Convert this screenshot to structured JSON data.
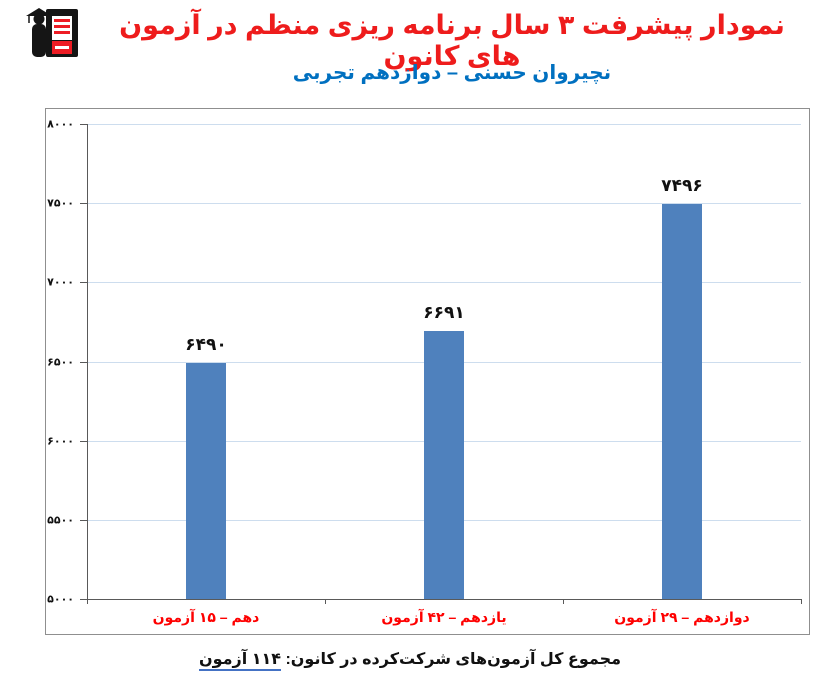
{
  "header": {
    "title": "نمودار پیشرفت ۳ سال برنامه ریزی منظم در آزمون های کانون",
    "subtitle": "نچیروان حسنی – دوازدهم تجربی"
  },
  "icons": {
    "logo": "kanoon-student-graduate-logo"
  },
  "chart_data": {
    "type": "bar",
    "title": "",
    "xlabel": "",
    "ylabel": "",
    "categories": [
      "دهم – ۱۵ آزمون",
      "یازدهم – ۴۲ آزمون",
      "دوازدهم – ۲۹ آزمون"
    ],
    "values": [
      6490,
      6691,
      7496
    ],
    "value_labels": [
      "۶۴۹۰",
      "۶۶۹۱",
      "۷۴۹۶"
    ],
    "ylim": [
      5000,
      8000
    ],
    "ytick_values": [
      5000,
      5500,
      6000,
      6500,
      7000,
      7500,
      8000
    ],
    "ytick_labels": [
      "۵۰۰۰",
      "۵۵۰۰",
      "۶۰۰۰",
      "۶۵۰۰",
      "۷۰۰۰",
      "۷۵۰۰",
      "۸۰۰۰"
    ],
    "grid": true,
    "legend": false,
    "bar_color": "#4f81bd",
    "gridline_color": "#cdddee",
    "axis_color": "#595959",
    "category_label_color": "#fe0000",
    "value_label_color": "#111111"
  },
  "footer": {
    "caption_prefix": "مجموع کل آزمون‌های شرکت‌کرده در کانون:",
    "caption_value": "۱۱۴ آزمون"
  },
  "colors": {
    "title_red": "#ee1c1c",
    "subtitle_blue": "#0070c0",
    "logo_red": "#ed1c24",
    "underline_blue": "#4472c4",
    "frame_border": "#8f8f8f"
  }
}
